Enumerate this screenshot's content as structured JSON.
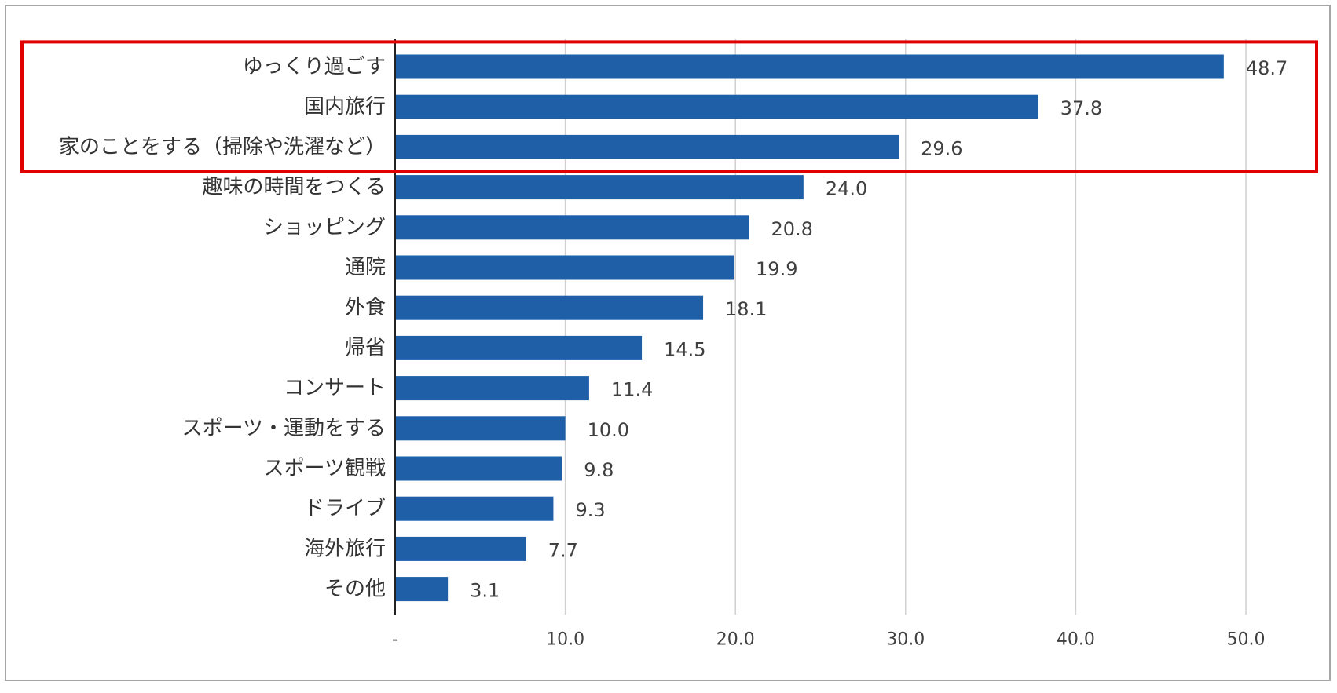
{
  "chart_data": {
    "type": "bar",
    "orientation": "horizontal",
    "categories": [
      "ゆっくり過ごす",
      "国内旅行",
      "家のことをする（掃除や洗濯など）",
      "趣味の時間をつくる",
      "ショッピング",
      "通院",
      "外食",
      "帰省",
      "コンサート",
      "スポーツ・運動をする",
      "スポーツ観戦",
      "ドライブ",
      "海外旅行",
      "その他"
    ],
    "values": [
      48.7,
      37.8,
      29.6,
      24.0,
      20.8,
      19.9,
      18.1,
      14.5,
      11.4,
      10.0,
      9.8,
      9.3,
      7.7,
      3.1
    ],
    "value_labels": [
      "48.7",
      "37.8",
      "29.6",
      "24.0",
      "20.8",
      "19.9",
      "18.1",
      "14.5",
      "11.4",
      "10.0",
      "9.8",
      "9.3",
      "7.7",
      "3.1"
    ],
    "xlim": [
      0,
      50
    ],
    "x_ticks": [
      0,
      10,
      20,
      30,
      40,
      50
    ],
    "x_tick_labels": [
      "-",
      "10.0",
      "20.0",
      "30.0",
      "40.0",
      "50.0"
    ],
    "grid": "vertical",
    "bar_color": "#1f5fa8",
    "highlight": {
      "categories": [
        "ゆっくり過ごす",
        "国内旅行",
        "家のことをする（掃除や洗濯など）"
      ],
      "color": "#e00000"
    },
    "title": "",
    "xlabel": "",
    "ylabel": ""
  }
}
